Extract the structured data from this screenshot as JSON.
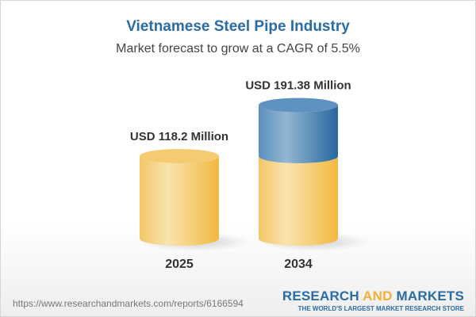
{
  "title": "Vietnamese Steel Pipe Industry",
  "subtitle": "Market forecast to grow at a CAGR of 5.5%",
  "chart_data": {
    "type": "bar",
    "style": "3d-cylinder",
    "categories": [
      "2025",
      "2034"
    ],
    "values": [
      118.2,
      191.38
    ],
    "data_labels": [
      "USD 118.2 Million",
      "USD 191.38 Million"
    ],
    "unit": "USD Million",
    "colors": {
      "base": "#f3c25a",
      "growth": "#3f7fb5"
    }
  },
  "footer": {
    "url": "https://www.researchandmarkets.com/reports/6166594",
    "logo_part1": "RESEARCH ",
    "logo_part2": "AND",
    "logo_part3": " MARKETS",
    "tagline": "THE WORLD'S LARGEST MARKET RESEARCH STORE"
  }
}
